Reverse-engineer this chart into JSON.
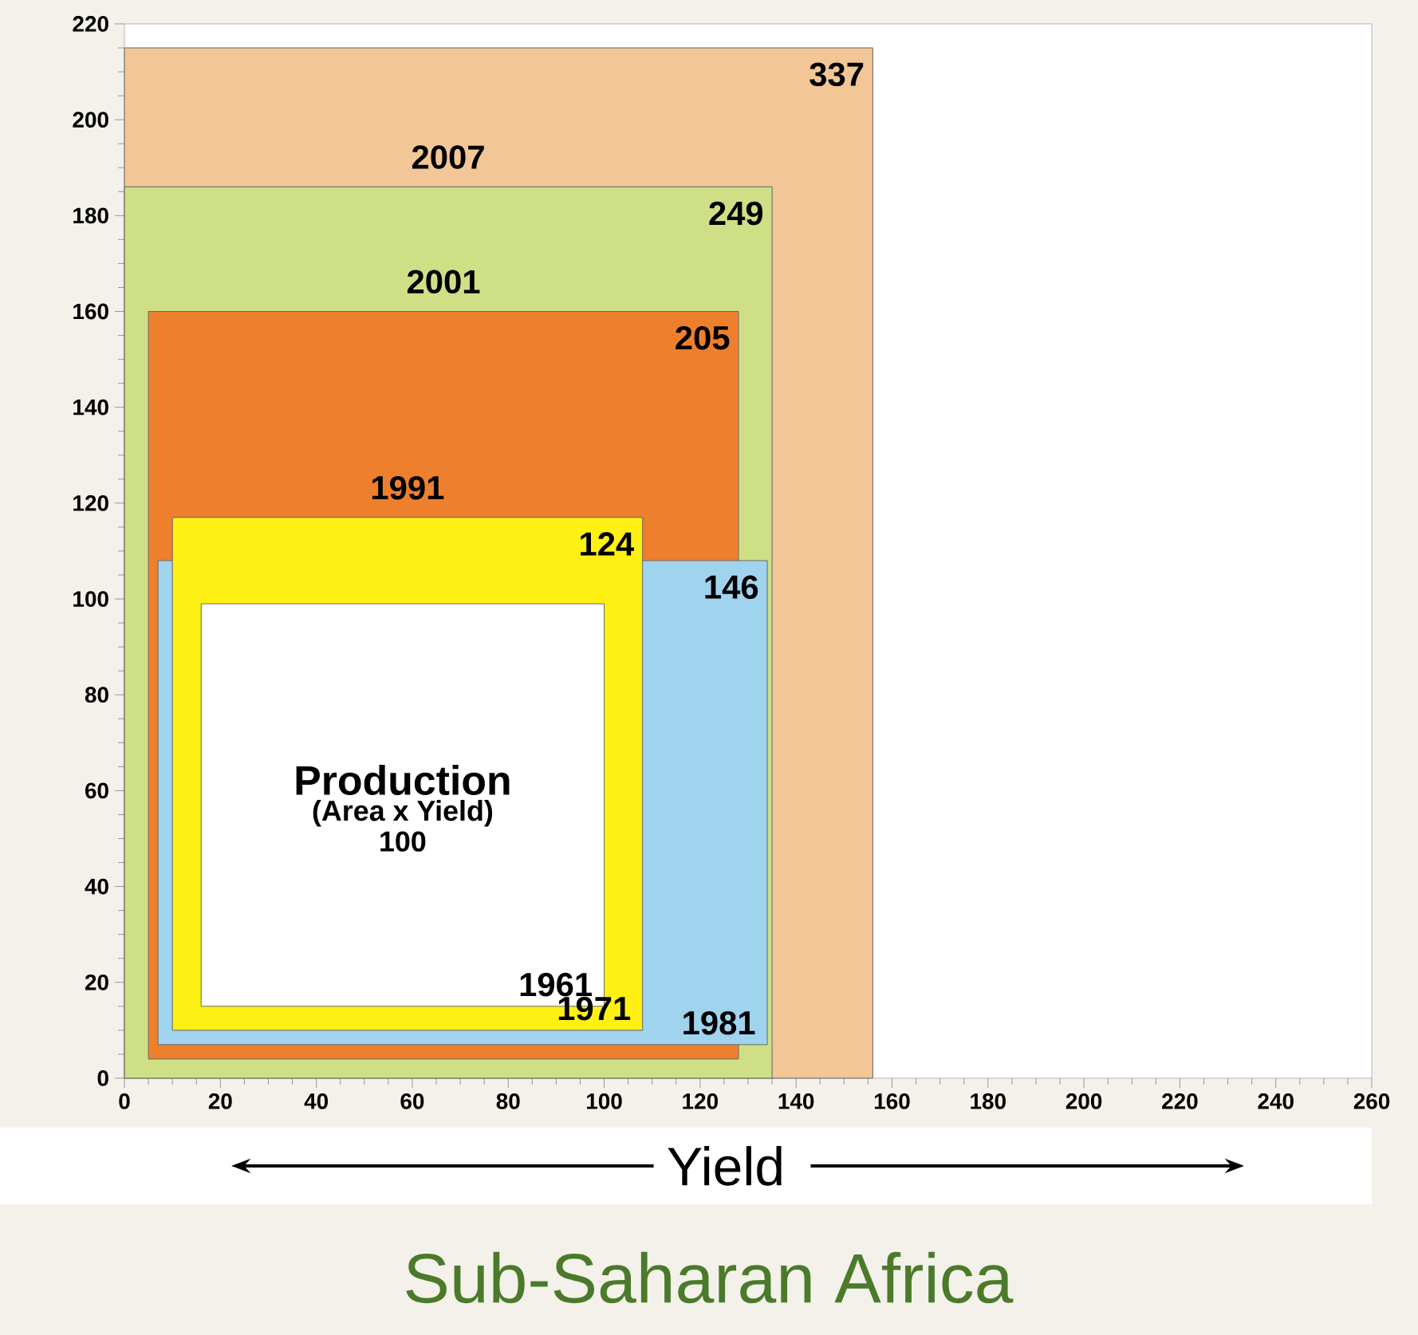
{
  "chart_data": {
    "type": "area",
    "title": "Sub-Saharan Africa",
    "xlabel": "Yield",
    "xlim": [
      0,
      260
    ],
    "xticks": [
      0,
      20,
      40,
      60,
      80,
      100,
      120,
      140,
      160,
      180,
      200,
      220,
      240,
      260
    ],
    "ylim": [
      0,
      220
    ],
    "yticks": [
      0,
      20,
      40,
      60,
      80,
      100,
      120,
      140,
      160,
      180,
      200,
      220
    ],
    "series": [
      {
        "name": "2007",
        "color": "#f2c697",
        "x": [
          0,
          156,
          156,
          0
        ],
        "values": [
          0,
          0,
          215,
          215
        ]
      },
      {
        "name": "2001",
        "color": "#cfdf85",
        "x": [
          0,
          135,
          135,
          0
        ],
        "values": [
          0,
          0,
          186,
          186
        ]
      },
      {
        "name": "1991",
        "color": "#ee7f2d",
        "x": [
          5,
          128,
          128,
          5
        ],
        "values": [
          4,
          4,
          160,
          160
        ]
      },
      {
        "name": "1981",
        "color": "#9fd3ee",
        "x": [
          7,
          134,
          134,
          7
        ],
        "values": [
          7,
          7,
          108,
          108
        ]
      },
      {
        "name": "1971",
        "color": "#fff014",
        "x": [
          10,
          108,
          108,
          10
        ],
        "values": [
          10,
          10,
          117,
          117
        ]
      },
      {
        "name": "1961",
        "color": "#ffffff",
        "x": [
          16,
          100,
          100,
          16
        ],
        "values": [
          15,
          15,
          99,
          99
        ]
      }
    ],
    "annotations": [
      "337",
      "249",
      "205",
      "146",
      "124",
      "Production",
      "(Area x Yield)",
      "100"
    ]
  }
}
